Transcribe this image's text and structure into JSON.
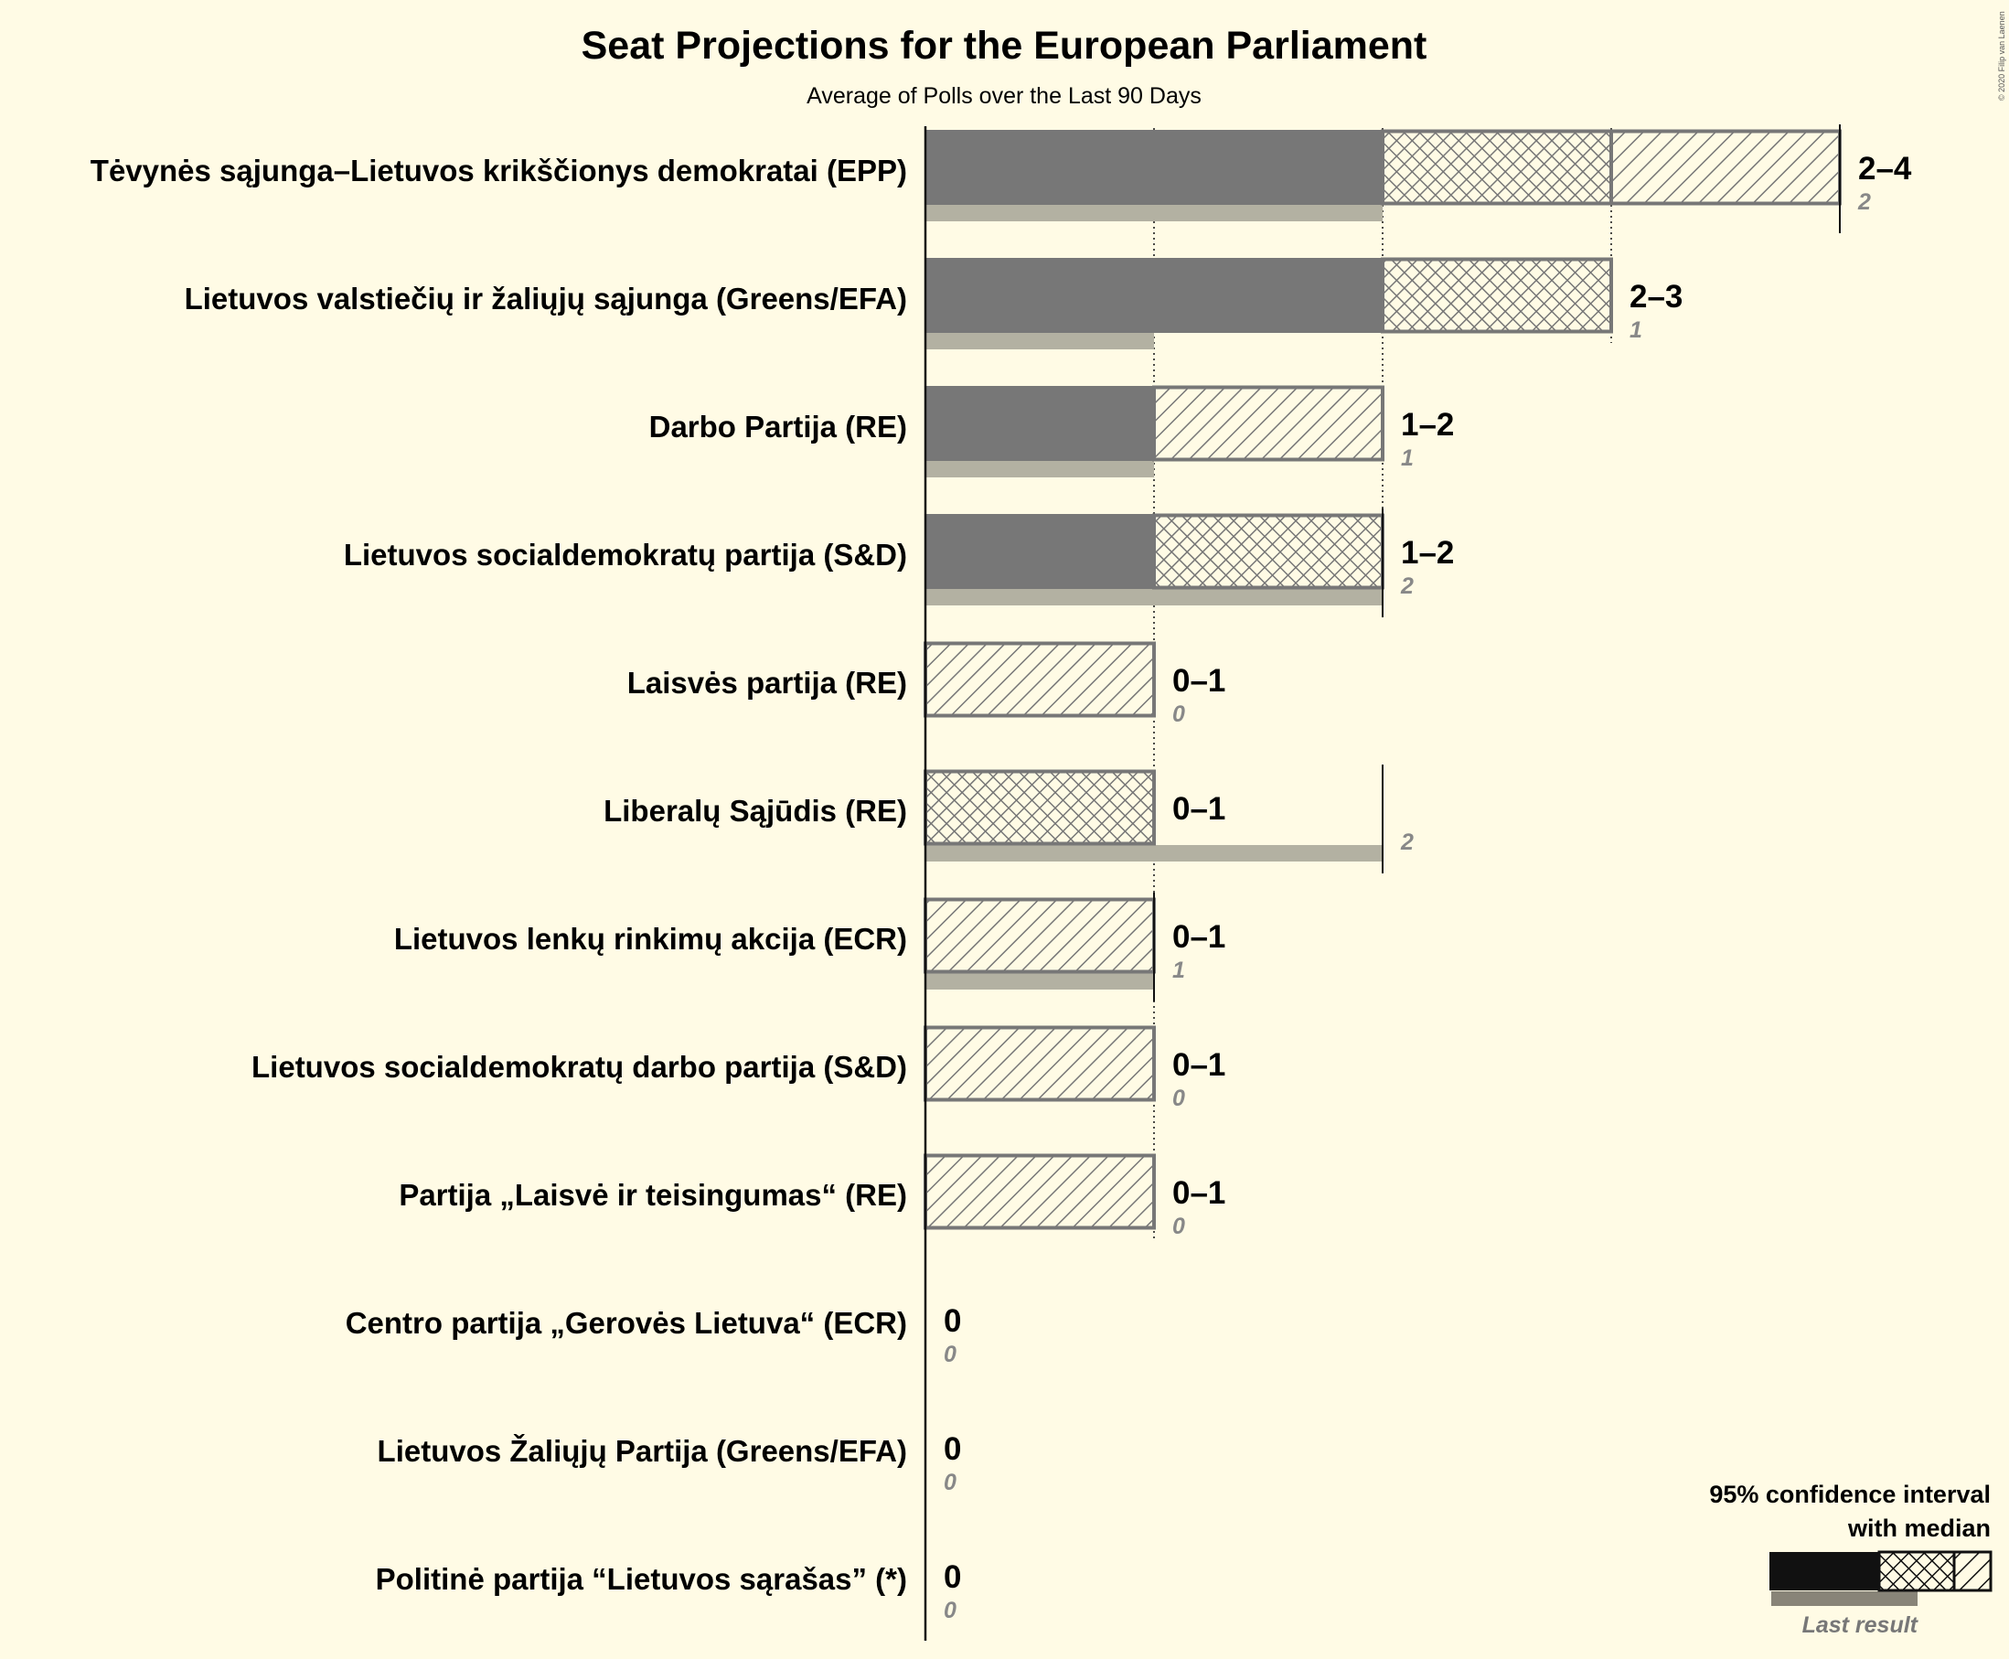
{
  "chart_data": {
    "type": "bar",
    "title": "Seat Projections for the European Parliament",
    "subtitle": "Average of Polls over the Last 90 Days",
    "copyright": "© 2020 Filip van Laenen",
    "xlim": [
      0,
      4
    ],
    "categories": [
      "Tėvynės sąjunga–Lietuvos krikščionys demokratai (EPP)",
      "Lietuvos valstiečių ir žaliųjų sąjunga (Greens/EFA)",
      "Darbo Partija (RE)",
      "Lietuvos socialdemokratų partija (S&D)",
      "Laisvės partija (RE)",
      "Liberalų Sąjūdis (RE)",
      "Lietuvos lenkų rinkimų akcija (ECR)",
      "Lietuvos socialdemokratų darbo partija (S&D)",
      "Partija „Laisvė ir teisingumas“ (RE)",
      "Centro partija „Gerovės Lietuva“ (ECR)",
      "Lietuvos Žaliųjų Partija (Greens/EFA)",
      "Politinė partija “Lietuvos sąrašas” (*)"
    ],
    "parties": [
      {
        "name": "Tėvynės sąjunga–Lietuvos krikščionys demokratai (EPP)",
        "low": 2,
        "median": 3,
        "high": 4,
        "last": 2,
        "range_label": "2–4",
        "last_label": "2"
      },
      {
        "name": "Lietuvos valstiečių ir žaliųjų sąjunga (Greens/EFA)",
        "low": 2,
        "median": 3,
        "high": 3,
        "last": 1,
        "range_label": "2–3",
        "last_label": "1"
      },
      {
        "name": "Darbo Partija (RE)",
        "low": 1,
        "median": 1,
        "high": 2,
        "last": 1,
        "range_label": "1–2",
        "last_label": "1"
      },
      {
        "name": "Lietuvos socialdemokratų partija (S&D)",
        "low": 1,
        "median": 2,
        "high": 2,
        "last": 2,
        "range_label": "1–2",
        "last_label": "2"
      },
      {
        "name": "Laisvės partija (RE)",
        "low": 0,
        "median": 0,
        "high": 1,
        "last": 0,
        "range_label": "0–1",
        "last_label": "0"
      },
      {
        "name": "Liberalų Sąjūdis (RE)",
        "low": 0,
        "median": 1,
        "high": 1,
        "last": 2,
        "range_label": "0–1",
        "last_label": "2"
      },
      {
        "name": "Lietuvos lenkų rinkimų akcija (ECR)",
        "low": 0,
        "median": 0,
        "high": 1,
        "last": 1,
        "range_label": "0–1",
        "last_label": "1"
      },
      {
        "name": "Lietuvos socialdemokratų darbo partija (S&D)",
        "low": 0,
        "median": 0,
        "high": 1,
        "last": 0,
        "range_label": "0–1",
        "last_label": "0"
      },
      {
        "name": "Partija „Laisvė ir teisingumas“ (RE)",
        "low": 0,
        "median": 0,
        "high": 1,
        "last": 0,
        "range_label": "0–1",
        "last_label": "0"
      },
      {
        "name": "Centro partija „Gerovės Lietuva“ (ECR)",
        "low": 0,
        "median": 0,
        "high": 0,
        "last": 0,
        "range_label": "0",
        "last_label": "0"
      },
      {
        "name": "Lietuvos Žaliųjų Partija (Greens/EFA)",
        "low": 0,
        "median": 0,
        "high": 0,
        "last": 0,
        "range_label": "0",
        "last_label": "0"
      },
      {
        "name": "Politinė partija “Lietuvos sąrašas” (*)",
        "low": 0,
        "median": 0,
        "high": 0,
        "last": 0,
        "range_label": "0",
        "last_label": "0"
      }
    ],
    "legend": {
      "line1": "95% confidence interval",
      "line2": "with median",
      "last_result": "Last result",
      "position": "bottom-right"
    },
    "colors": {
      "background": "#fffbe5",
      "solid": "#777777",
      "pattern_stroke": "#777777",
      "last_result": "#b3b1a2",
      "legend_solid": "#111111",
      "legend_last": "#888478"
    }
  }
}
